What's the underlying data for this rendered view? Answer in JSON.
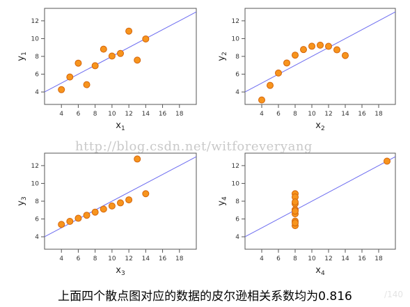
{
  "chart_data": [
    {
      "type": "scatter",
      "xlabel": "x",
      "xlabel_sub": "1",
      "ylabel": "y",
      "ylabel_sub": "1",
      "xlim": [
        2,
        20
      ],
      "ylim": [
        2.6,
        13.4
      ],
      "xticks": [
        4,
        6,
        8,
        10,
        12,
        14,
        16,
        18
      ],
      "yticks": [
        4,
        6,
        8,
        10,
        12
      ],
      "points": [
        [
          10,
          8.04
        ],
        [
          8,
          6.95
        ],
        [
          13,
          7.58
        ],
        [
          9,
          8.81
        ],
        [
          11,
          8.33
        ],
        [
          14,
          9.96
        ],
        [
          6,
          7.24
        ],
        [
          4,
          4.26
        ],
        [
          12,
          10.84
        ],
        [
          7,
          4.82
        ],
        [
          5,
          5.68
        ]
      ],
      "fit_line": {
        "intercept": 3.0,
        "slope": 0.5
      }
    },
    {
      "type": "scatter",
      "xlabel": "x",
      "xlabel_sub": "2",
      "ylabel": "y",
      "ylabel_sub": "2",
      "xlim": [
        2,
        20
      ],
      "ylim": [
        2.6,
        13.4
      ],
      "xticks": [
        4,
        6,
        8,
        10,
        12,
        14,
        16,
        18
      ],
      "yticks": [
        4,
        6,
        8,
        10,
        12
      ],
      "points": [
        [
          10,
          9.14
        ],
        [
          8,
          8.14
        ],
        [
          13,
          8.74
        ],
        [
          9,
          8.77
        ],
        [
          11,
          9.26
        ],
        [
          14,
          8.1
        ],
        [
          6,
          6.13
        ],
        [
          4,
          3.1
        ],
        [
          12,
          9.13
        ],
        [
          7,
          7.26
        ],
        [
          5,
          4.74
        ]
      ],
      "fit_line": {
        "intercept": 3.0,
        "slope": 0.5
      }
    },
    {
      "type": "scatter",
      "xlabel": "x",
      "xlabel_sub": "3",
      "ylabel": "y",
      "ylabel_sub": "3",
      "xlim": [
        2,
        20
      ],
      "ylim": [
        2.6,
        13.4
      ],
      "xticks": [
        4,
        6,
        8,
        10,
        12,
        14,
        16,
        18
      ],
      "yticks": [
        4,
        6,
        8,
        10,
        12
      ],
      "points": [
        [
          10,
          7.46
        ],
        [
          8,
          6.77
        ],
        [
          13,
          12.74
        ],
        [
          9,
          7.11
        ],
        [
          11,
          7.81
        ],
        [
          14,
          8.84
        ],
        [
          6,
          6.08
        ],
        [
          4,
          5.39
        ],
        [
          12,
          8.15
        ],
        [
          7,
          6.42
        ],
        [
          5,
          5.73
        ]
      ],
      "fit_line": {
        "intercept": 3.0,
        "slope": 0.5
      }
    },
    {
      "type": "scatter",
      "xlabel": "x",
      "xlabel_sub": "4",
      "ylabel": "y",
      "ylabel_sub": "4",
      "xlim": [
        2,
        20
      ],
      "ylim": [
        2.6,
        13.4
      ],
      "xticks": [
        4,
        6,
        8,
        10,
        12,
        14,
        16,
        18
      ],
      "yticks": [
        4,
        6,
        8,
        10,
        12
      ],
      "points": [
        [
          8,
          6.58
        ],
        [
          8,
          5.76
        ],
        [
          8,
          7.71
        ],
        [
          8,
          8.84
        ],
        [
          8,
          8.47
        ],
        [
          8,
          7.04
        ],
        [
          8,
          5.25
        ],
        [
          19,
          12.5
        ],
        [
          8,
          5.56
        ],
        [
          8,
          7.91
        ],
        [
          8,
          6.89
        ]
      ],
      "fit_line": {
        "intercept": 3.0,
        "slope": 0.5
      }
    }
  ],
  "watermark": "http://blog.csdn.net/witforeveryang",
  "caption": "上面四个散点图对应的数据的皮尔逊相关系数均为0.816",
  "corner_mark": "/140",
  "colors": {
    "point_fill": "#f7941d",
    "point_stroke": "#d3640b",
    "fit_line": "#6b6bf0",
    "axis": "#555555"
  }
}
